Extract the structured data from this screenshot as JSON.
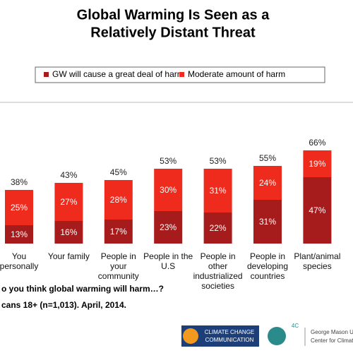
{
  "chart_data": {
    "type": "stacked_bar",
    "title": [
      "Global Warming Is Seen as a",
      "Relatively Distant Threat"
    ],
    "categories": [
      "You personally",
      "Your family",
      "People in your community",
      "People in the U.S",
      "People in other industrialized societies",
      "People in developing countries",
      "Plant/animal species"
    ],
    "series": [
      {
        "name": "GW will cause a great deal of harm",
        "color": "#a61b1b",
        "values": [
          13,
          16,
          17,
          23,
          22,
          31,
          47
        ],
        "value_labels": [
          "13%",
          "16%",
          "17%",
          "23%",
          "22%",
          "31%",
          "47%"
        ]
      },
      {
        "name": "Moderate amount of harm",
        "color": "#ef2b1e",
        "values": [
          25,
          27,
          28,
          30,
          31,
          24,
          19
        ],
        "value_labels": [
          "25%",
          "27%",
          "28%",
          "30%",
          "31%",
          "24%",
          "19%"
        ]
      }
    ],
    "totals": [
      38,
      43,
      45,
      53,
      53,
      55,
      66
    ],
    "total_labels": [
      "38%",
      "43%",
      "45%",
      "53%",
      "53%",
      "55%",
      "66%"
    ],
    "footnotes": [
      "o you think global warming will harm…?",
      "cans 18+ (n=1,013). April, 2014."
    ],
    "logos": [
      "CLIMATE CHANGE",
      "COMMUNICATION",
      "4C",
      "George Mason Un",
      "Center for Climat"
    ]
  }
}
